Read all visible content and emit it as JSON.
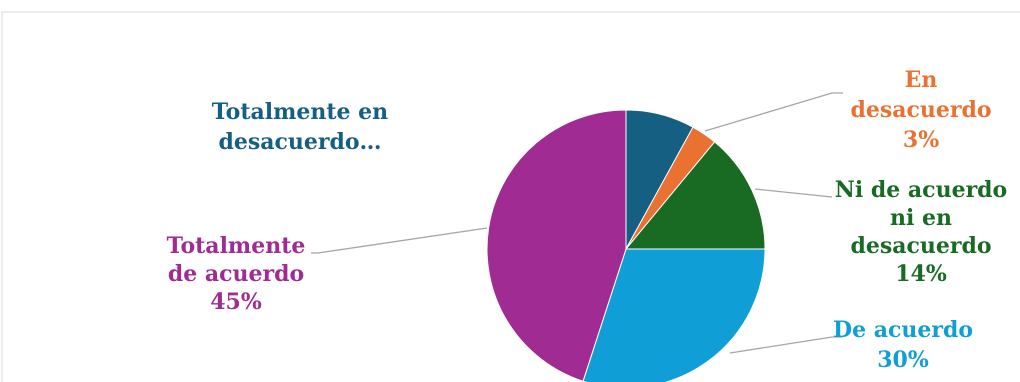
{
  "chart_data": {
    "type": "pie",
    "title": "",
    "categories": [
      "Totalmente en desacuerdo",
      "En desacuerdo",
      "Ni de acuerdo ni en desacuerdo",
      "De acuerdo",
      "Totalmente de acuerdo"
    ],
    "values": [
      8,
      3,
      14,
      30,
      45
    ],
    "colors": [
      "#155f82",
      "#e97132",
      "#196b24",
      "#0f9ed5",
      "#a02b93"
    ],
    "data_labels": [
      {
        "lines": [
          "Totalmente en",
          "desacuerdo…"
        ]
      },
      {
        "lines": [
          "En",
          "desacuerdo",
          "3%"
        ]
      },
      {
        "lines": [
          "Ni de acuerdo",
          "ni en",
          "desacuerdo",
          "14%"
        ]
      },
      {
        "lines": [
          "De acuerdo",
          "30%"
        ]
      },
      {
        "lines": [
          "Totalmente",
          "de acuerdo",
          "45%"
        ]
      }
    ],
    "legend": "none",
    "start_angle": "12 o'clock",
    "direction": "clockwise"
  }
}
